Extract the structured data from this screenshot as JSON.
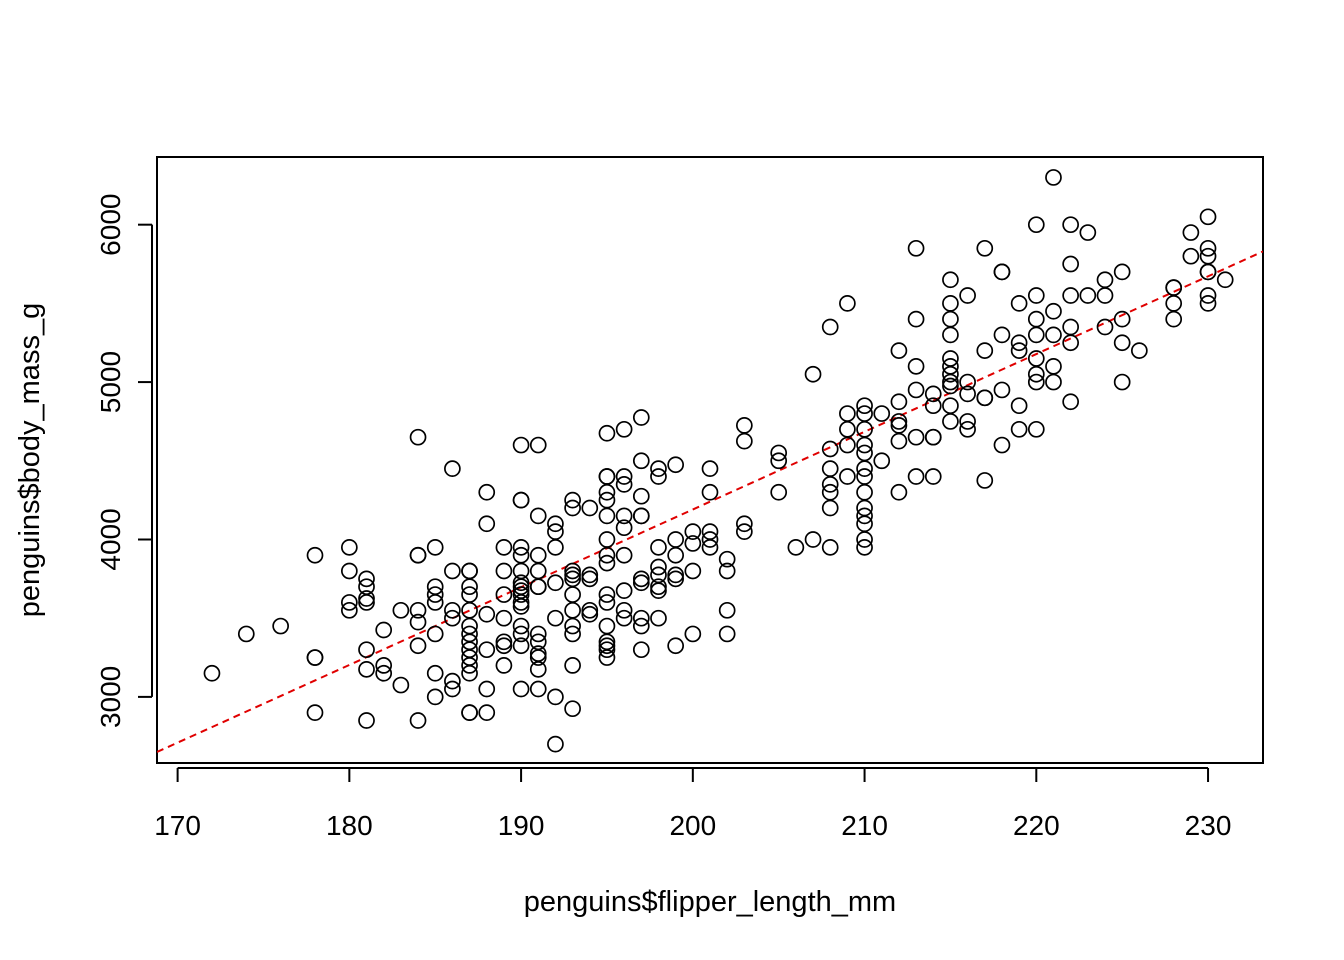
{
  "chart_data": {
    "type": "scatter",
    "title": "",
    "xlabel": "penguins$flipper_length_mm",
    "ylabel": "penguins$body_mass_g",
    "xlim": [
      168.8,
      233.2
    ],
    "ylim": [
      2580,
      6430
    ],
    "xticks": [
      170,
      180,
      190,
      200,
      210,
      220,
      230
    ],
    "yticks": [
      3000,
      4000,
      5000,
      6000
    ],
    "grid": false,
    "legend": "none",
    "point_color": "#000000",
    "trend_color": "#e00000",
    "trend_line": {
      "x": [
        168.8,
        233.2
      ],
      "y": [
        2650,
        5830
      ]
    },
    "points": [
      [
        172,
        3150
      ],
      [
        174,
        3400
      ],
      [
        176,
        3450
      ],
      [
        178,
        3900
      ],
      [
        178,
        3250
      ],
      [
        178,
        3250
      ],
      [
        178,
        2900
      ],
      [
        180,
        3950
      ],
      [
        180,
        3800
      ],
      [
        180,
        3600
      ],
      [
        180,
        3550
      ],
      [
        181,
        3750
      ],
      [
        181,
        3700
      ],
      [
        181,
        3625
      ],
      [
        181,
        3600
      ],
      [
        181,
        3300
      ],
      [
        181,
        3175
      ],
      [
        181,
        2850
      ],
      [
        182,
        3425
      ],
      [
        182,
        3200
      ],
      [
        182,
        3150
      ],
      [
        183,
        3550
      ],
      [
        183,
        3075
      ],
      [
        184,
        4650
      ],
      [
        184,
        3900
      ],
      [
        184,
        3900
      ],
      [
        184,
        3550
      ],
      [
        184,
        3475
      ],
      [
        184,
        3325
      ],
      [
        184,
        2850
      ],
      [
        185,
        3950
      ],
      [
        185,
        3700
      ],
      [
        185,
        3650
      ],
      [
        185,
        3600
      ],
      [
        185,
        3400
      ],
      [
        185,
        3150
      ],
      [
        185,
        3000
      ],
      [
        186,
        4450
      ],
      [
        186,
        3800
      ],
      [
        186,
        3550
      ],
      [
        186,
        3500
      ],
      [
        186,
        3100
      ],
      [
        186,
        3050
      ],
      [
        187,
        3800
      ],
      [
        187,
        3800
      ],
      [
        187,
        3700
      ],
      [
        187,
        3650
      ],
      [
        187,
        3550
      ],
      [
        187,
        3450
      ],
      [
        187,
        3400
      ],
      [
        187,
        3350
      ],
      [
        187,
        3300
      ],
      [
        187,
        3250
      ],
      [
        187,
        3200
      ],
      [
        187,
        3150
      ],
      [
        187,
        2900
      ],
      [
        187,
        2900
      ],
      [
        188,
        4300
      ],
      [
        188,
        4100
      ],
      [
        188,
        3525
      ],
      [
        188,
        3300
      ],
      [
        188,
        3050
      ],
      [
        188,
        2900
      ],
      [
        189,
        3950
      ],
      [
        189,
        3800
      ],
      [
        189,
        3650
      ],
      [
        189,
        3500
      ],
      [
        189,
        3350
      ],
      [
        189,
        3325
      ],
      [
        189,
        3200
      ],
      [
        190,
        4600
      ],
      [
        190,
        4250
      ],
      [
        190,
        4250
      ],
      [
        190,
        3950
      ],
      [
        190,
        3900
      ],
      [
        190,
        3800
      ],
      [
        190,
        3725
      ],
      [
        190,
        3700
      ],
      [
        190,
        3675
      ],
      [
        190,
        3650
      ],
      [
        190,
        3600
      ],
      [
        190,
        3575
      ],
      [
        190,
        3450
      ],
      [
        190,
        3400
      ],
      [
        190,
        3325
      ],
      [
        190,
        3050
      ],
      [
        191,
        4600
      ],
      [
        191,
        4150
      ],
      [
        191,
        3900
      ],
      [
        191,
        3800
      ],
      [
        191,
        3700
      ],
      [
        191,
        3700
      ],
      [
        191,
        3400
      ],
      [
        191,
        3350
      ],
      [
        191,
        3275
      ],
      [
        191,
        3250
      ],
      [
        191,
        3175
      ],
      [
        191,
        3050
      ],
      [
        192,
        4100
      ],
      [
        192,
        4050
      ],
      [
        192,
        3950
      ],
      [
        192,
        3725
      ],
      [
        192,
        3500
      ],
      [
        192,
        3000
      ],
      [
        192,
        2700
      ],
      [
        193,
        4250
      ],
      [
        193,
        4200
      ],
      [
        193,
        3800
      ],
      [
        193,
        3775
      ],
      [
        193,
        3750
      ],
      [
        193,
        3650
      ],
      [
        193,
        3550
      ],
      [
        193,
        3450
      ],
      [
        193,
        3400
      ],
      [
        193,
        3200
      ],
      [
        193,
        2925
      ],
      [
        194,
        4200
      ],
      [
        194,
        3775
      ],
      [
        194,
        3750
      ],
      [
        194,
        3550
      ],
      [
        194,
        3525
      ],
      [
        195,
        4675
      ],
      [
        195,
        4400
      ],
      [
        195,
        4400
      ],
      [
        195,
        4300
      ],
      [
        195,
        4250
      ],
      [
        195,
        4150
      ],
      [
        195,
        4000
      ],
      [
        195,
        3900
      ],
      [
        195,
        3850
      ],
      [
        195,
        3650
      ],
      [
        195,
        3600
      ],
      [
        195,
        3450
      ],
      [
        195,
        3350
      ],
      [
        195,
        3325
      ],
      [
        195,
        3300
      ],
      [
        195,
        3250
      ],
      [
        196,
        4700
      ],
      [
        196,
        4400
      ],
      [
        196,
        4350
      ],
      [
        196,
        4150
      ],
      [
        196,
        4075
      ],
      [
        196,
        3900
      ],
      [
        196,
        3675
      ],
      [
        196,
        3550
      ],
      [
        196,
        3500
      ],
      [
        197,
        4775
      ],
      [
        197,
        4500
      ],
      [
        197,
        4275
      ],
      [
        197,
        4150
      ],
      [
        197,
        4150
      ],
      [
        197,
        3750
      ],
      [
        197,
        3725
      ],
      [
        197,
        3500
      ],
      [
        197,
        3450
      ],
      [
        197,
        3300
      ],
      [
        198,
        4450
      ],
      [
        198,
        4400
      ],
      [
        198,
        3950
      ],
      [
        198,
        3825
      ],
      [
        198,
        3775
      ],
      [
        198,
        3700
      ],
      [
        198,
        3675
      ],
      [
        198,
        3500
      ],
      [
        199,
        4475
      ],
      [
        199,
        4000
      ],
      [
        199,
        3900
      ],
      [
        199,
        3775
      ],
      [
        199,
        3750
      ],
      [
        199,
        3325
      ],
      [
        200,
        4050
      ],
      [
        200,
        3975
      ],
      [
        200,
        3800
      ],
      [
        200,
        3400
      ],
      [
        201,
        4450
      ],
      [
        201,
        4300
      ],
      [
        201,
        4050
      ],
      [
        201,
        4000
      ],
      [
        201,
        3950
      ],
      [
        202,
        3875
      ],
      [
        202,
        3800
      ],
      [
        202,
        3550
      ],
      [
        202,
        3400
      ],
      [
        203,
        4725
      ],
      [
        203,
        4625
      ],
      [
        203,
        4100
      ],
      [
        203,
        4050
      ],
      [
        205,
        4550
      ],
      [
        205,
        4500
      ],
      [
        205,
        4300
      ],
      [
        206,
        3950
      ],
      [
        207,
        5050
      ],
      [
        207,
        4000
      ],
      [
        208,
        5350
      ],
      [
        208,
        4575
      ],
      [
        208,
        4450
      ],
      [
        208,
        4350
      ],
      [
        208,
        4300
      ],
      [
        208,
        4200
      ],
      [
        208,
        3950
      ],
      [
        209,
        5500
      ],
      [
        209,
        4800
      ],
      [
        209,
        4700
      ],
      [
        209,
        4600
      ],
      [
        209,
        4400
      ],
      [
        210,
        4850
      ],
      [
        210,
        4800
      ],
      [
        210,
        4700
      ],
      [
        210,
        4600
      ],
      [
        210,
        4550
      ],
      [
        210,
        4450
      ],
      [
        210,
        4400
      ],
      [
        210,
        4300
      ],
      [
        210,
        4200
      ],
      [
        210,
        4150
      ],
      [
        210,
        4100
      ],
      [
        210,
        4000
      ],
      [
        210,
        3950
      ],
      [
        211,
        4800
      ],
      [
        211,
        4500
      ],
      [
        212,
        5200
      ],
      [
        212,
        4875
      ],
      [
        212,
        4750
      ],
      [
        212,
        4725
      ],
      [
        212,
        4625
      ],
      [
        212,
        4300
      ],
      [
        213,
        5850
      ],
      [
        213,
        5400
      ],
      [
        213,
        5100
      ],
      [
        213,
        4950
      ],
      [
        213,
        4650
      ],
      [
        213,
        4400
      ],
      [
        214,
        4925
      ],
      [
        214,
        4850
      ],
      [
        214,
        4650
      ],
      [
        214,
        4650
      ],
      [
        214,
        4400
      ],
      [
        215,
        5650
      ],
      [
        215,
        5500
      ],
      [
        215,
        5400
      ],
      [
        215,
        5300
      ],
      [
        215,
        5150
      ],
      [
        215,
        5100
      ],
      [
        215,
        5050
      ],
      [
        215,
        5000
      ],
      [
        215,
        4975
      ],
      [
        215,
        4850
      ],
      [
        215,
        4750
      ],
      [
        216,
        5550
      ],
      [
        216,
        5000
      ],
      [
        216,
        4925
      ],
      [
        216,
        4750
      ],
      [
        216,
        4700
      ],
      [
        217,
        5850
      ],
      [
        217,
        5200
      ],
      [
        217,
        4900
      ],
      [
        217,
        4900
      ],
      [
        217,
        4375
      ],
      [
        218,
        5700
      ],
      [
        218,
        5700
      ],
      [
        218,
        5300
      ],
      [
        218,
        4950
      ],
      [
        218,
        4600
      ],
      [
        219,
        5500
      ],
      [
        219,
        5250
      ],
      [
        219,
        5200
      ],
      [
        219,
        4850
      ],
      [
        219,
        4700
      ],
      [
        220,
        6000
      ],
      [
        220,
        5550
      ],
      [
        220,
        5400
      ],
      [
        220,
        5300
      ],
      [
        220,
        5150
      ],
      [
        220,
        5050
      ],
      [
        220,
        5000
      ],
      [
        220,
        4700
      ],
      [
        221,
        6300
      ],
      [
        221,
        5450
      ],
      [
        221,
        5300
      ],
      [
        221,
        5100
      ],
      [
        221,
        5000
      ],
      [
        222,
        6000
      ],
      [
        222,
        5750
      ],
      [
        222,
        5550
      ],
      [
        222,
        5350
      ],
      [
        222,
        5250
      ],
      [
        222,
        4875
      ],
      [
        223,
        5950
      ],
      [
        223,
        5550
      ],
      [
        224,
        5650
      ],
      [
        224,
        5550
      ],
      [
        224,
        5350
      ],
      [
        225,
        5700
      ],
      [
        225,
        5400
      ],
      [
        225,
        5250
      ],
      [
        225,
        5000
      ],
      [
        226,
        5200
      ],
      [
        228,
        5600
      ],
      [
        228,
        5600
      ],
      [
        228,
        5500
      ],
      [
        228,
        5400
      ],
      [
        229,
        5950
      ],
      [
        229,
        5800
      ],
      [
        230,
        6050
      ],
      [
        230,
        5850
      ],
      [
        230,
        5800
      ],
      [
        230,
        5700
      ],
      [
        230,
        5700
      ],
      [
        230,
        5550
      ],
      [
        230,
        5500
      ],
      [
        231,
        5650
      ]
    ]
  }
}
